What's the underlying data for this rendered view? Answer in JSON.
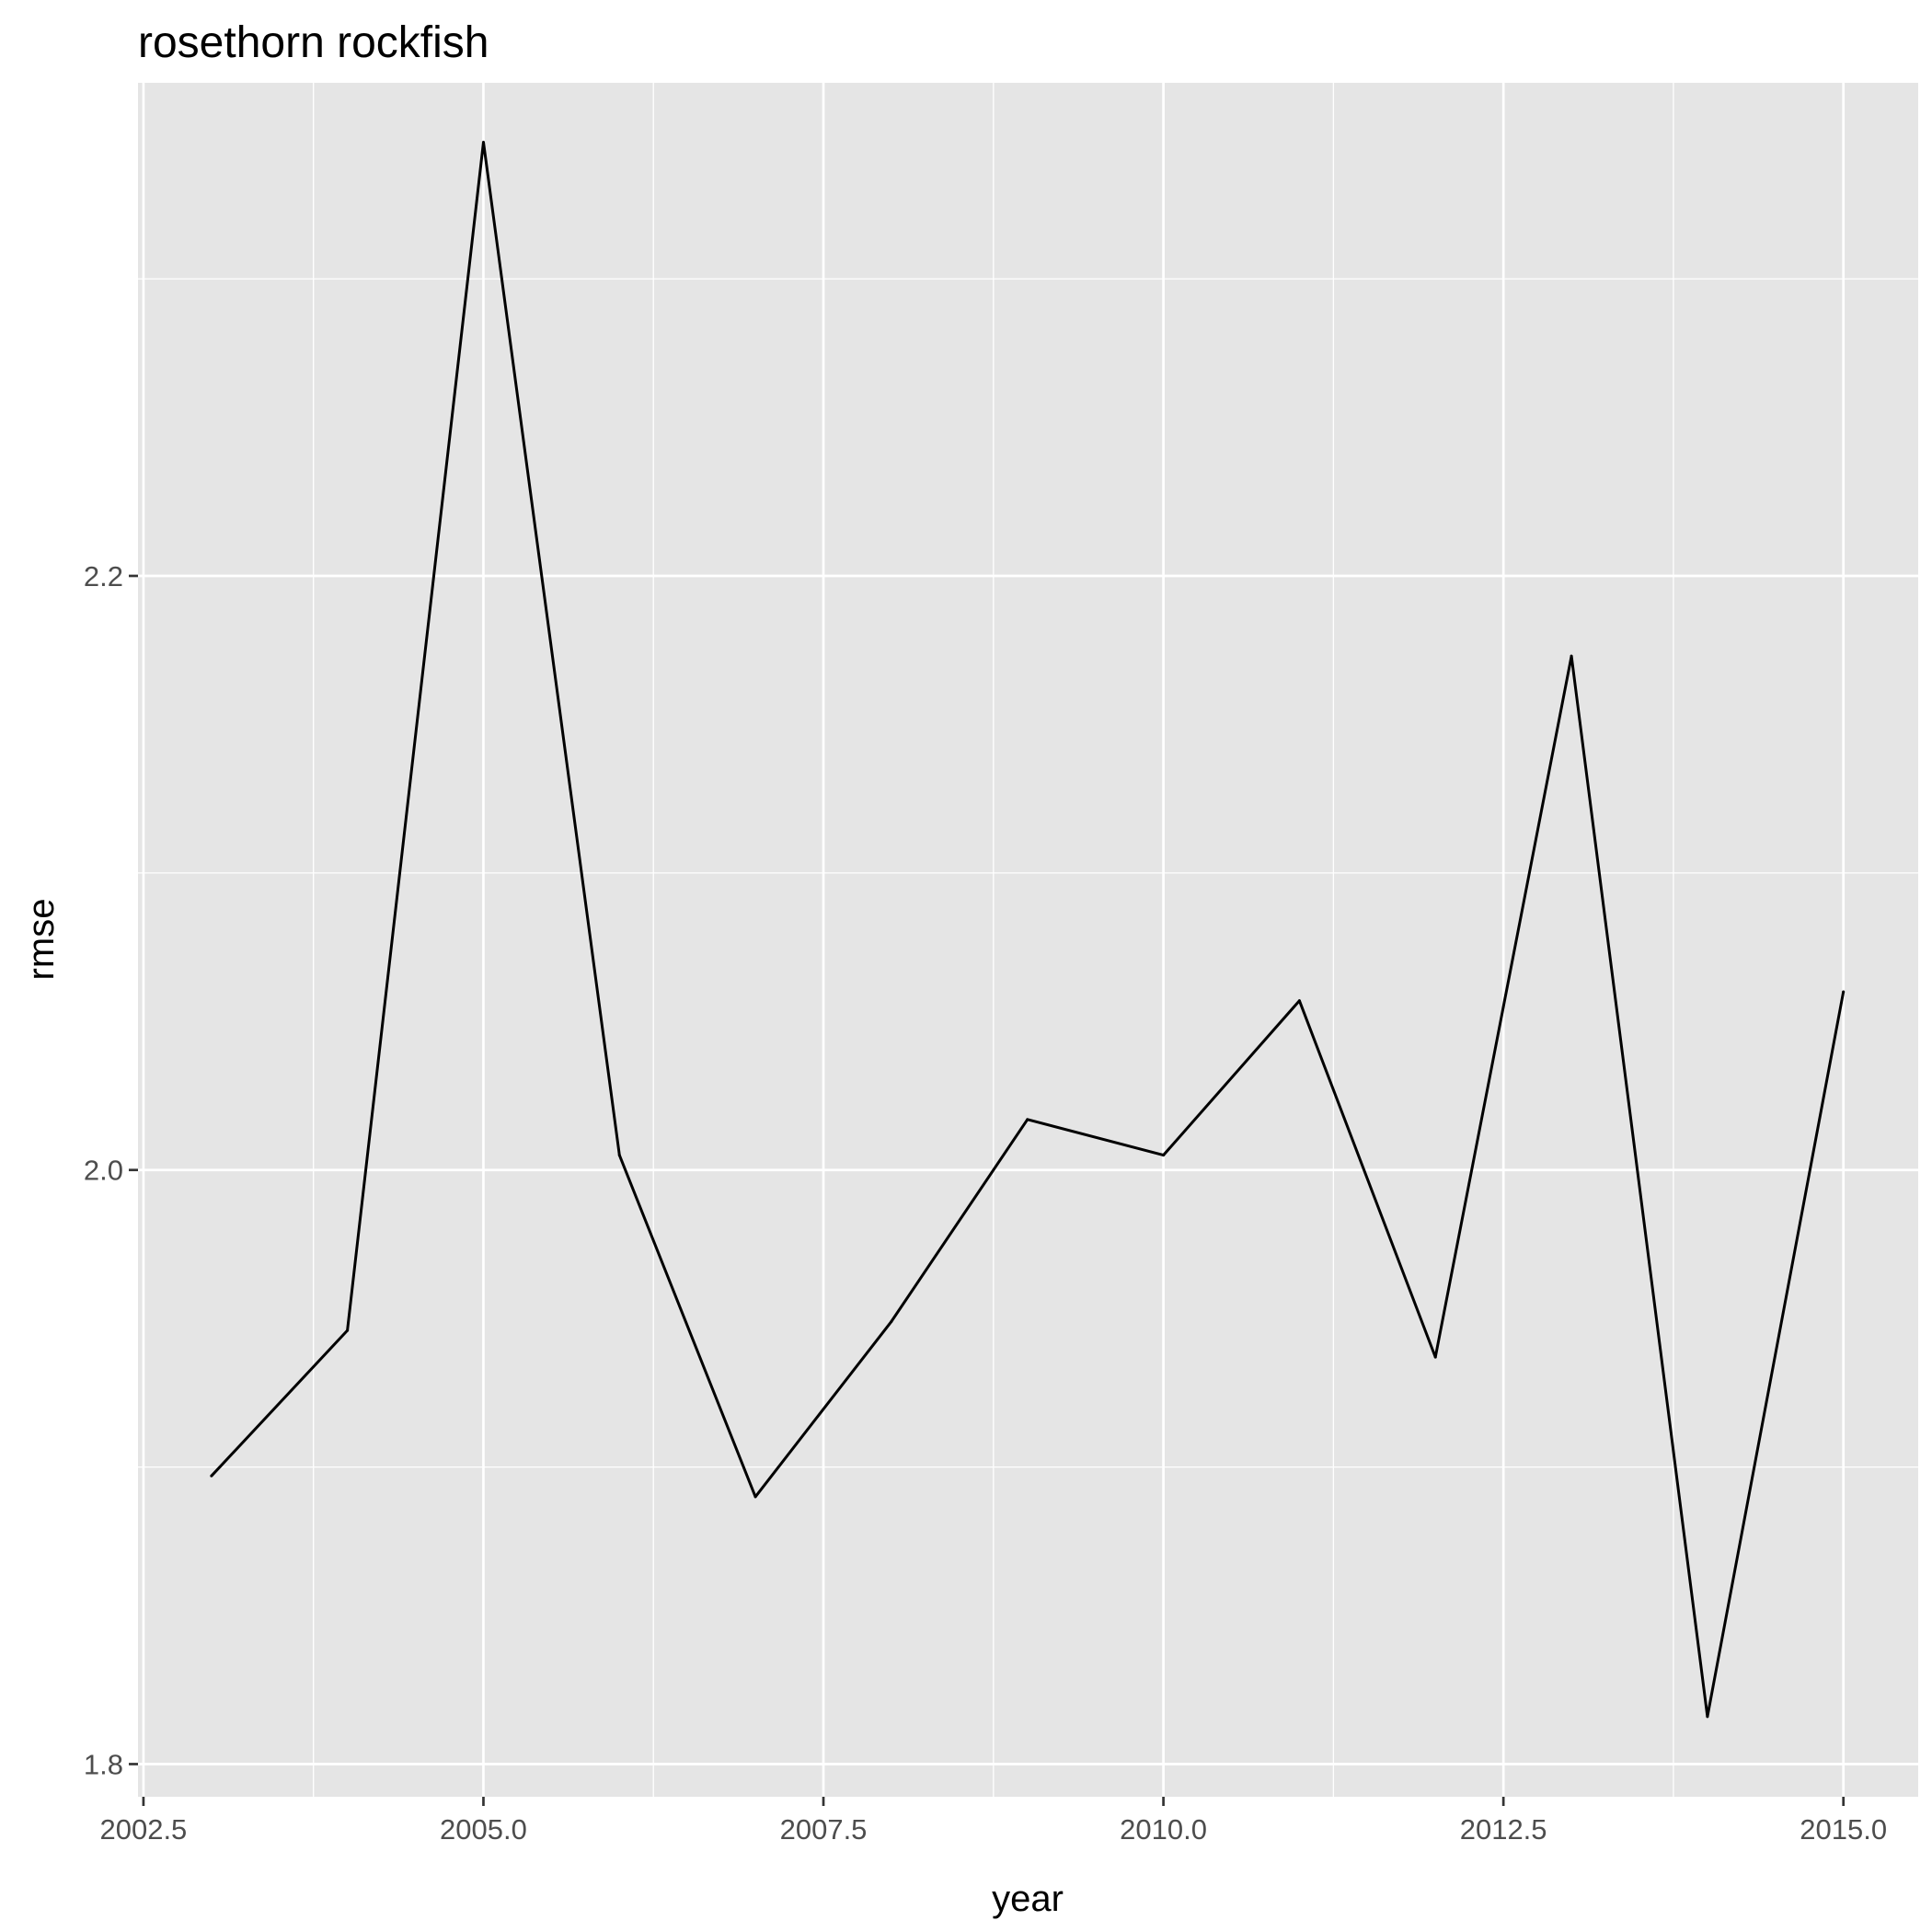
{
  "chart_data": {
    "type": "line",
    "title": "rosethorn rockfish",
    "xlabel": "year",
    "ylabel": "rmse",
    "xlim": [
      2002.46,
      2015.55
    ],
    "ylim": [
      1.789,
      2.366
    ],
    "x_ticks": [
      2002.5,
      2005.0,
      2007.5,
      2010.0,
      2012.5,
      2015.0
    ],
    "x_tick_labels": [
      "2002.5",
      "2005.0",
      "2007.5",
      "2010.0",
      "2012.5",
      "2015.0"
    ],
    "y_ticks": [
      1.8,
      2.0,
      2.2
    ],
    "y_tick_labels": [
      "1.8",
      "2.0",
      "2.2"
    ],
    "x_minor_ticks": [
      2003.75,
      2006.25,
      2008.75,
      2011.25,
      2013.75
    ],
    "y_minor_ticks": [
      1.9,
      2.1,
      2.3
    ],
    "grid": true,
    "legend": "none",
    "colors": {
      "panel_background": "#e5e5e5",
      "grid": "#ffffff",
      "line": "#000000",
      "tick_label": "#4d4d4d",
      "axis_tick": "#333333"
    },
    "series": [
      {
        "x": [
          2003,
          2004,
          2005,
          2006,
          2007,
          2008,
          2009,
          2010,
          2011,
          2012,
          2013,
          2014,
          2015
        ],
        "values": [
          1.897,
          1.946,
          2.346,
          2.005,
          1.89,
          1.949,
          2.017,
          2.005,
          2.057,
          1.937,
          2.173,
          1.816,
          2.06
        ]
      }
    ]
  }
}
